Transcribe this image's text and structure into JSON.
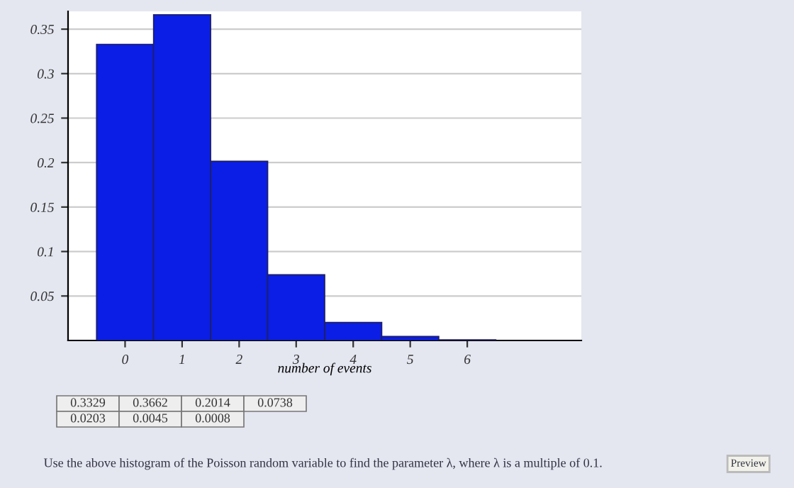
{
  "chart_data": {
    "type": "histogram",
    "xlabel": "number of events",
    "bins": [
      -0.5,
      0.5,
      1.5,
      2.5,
      3.5,
      4.5,
      5.5,
      6.5
    ],
    "values": [
      0.3329,
      0.3662,
      0.2014,
      0.0738,
      0.0203,
      0.0045,
      0.0008
    ],
    "color": "#0a1ee6",
    "xlim": [
      -1,
      8
    ],
    "xticks": [
      0,
      1,
      2,
      3,
      4,
      5,
      6
    ],
    "ylim": [
      0,
      0.37
    ],
    "yticks": [
      0.05,
      0.1,
      0.15,
      0.2,
      0.25,
      0.3,
      0.35
    ],
    "grid": "y",
    "annotations": [
      "0.3329",
      "0.3662",
      "0.2014",
      "0.0738",
      "0.0203",
      "0.0045",
      "0.0008",
      "Use the above histogram of the Poisson random variable to find the parameter λ, where λ is a multiple of 0.1.",
      "Preview"
    ]
  }
}
